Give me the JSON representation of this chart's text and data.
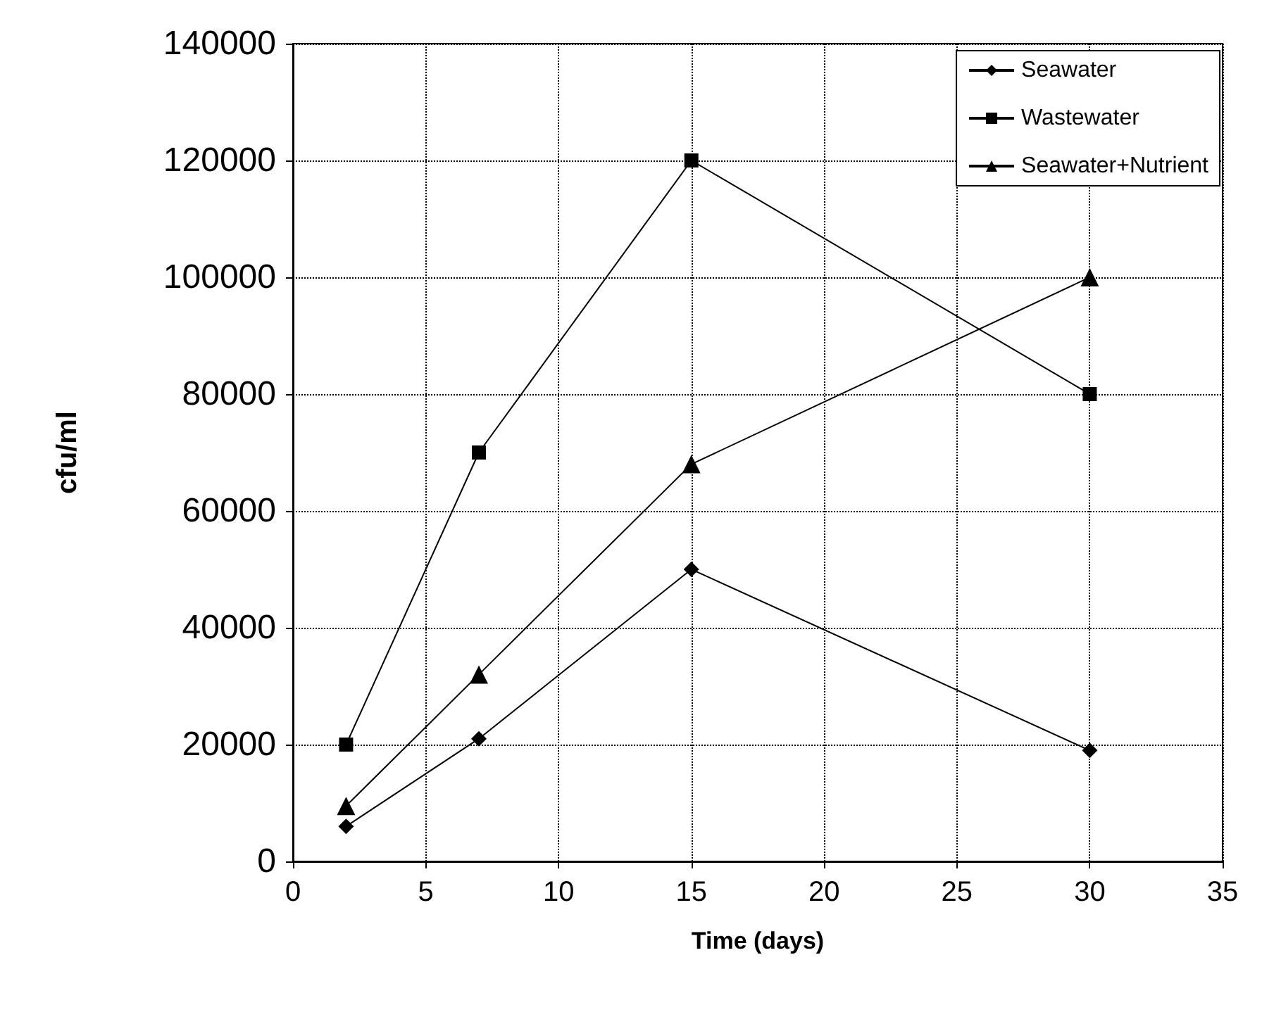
{
  "chart_data": {
    "type": "line",
    "xlabel": "Time (days)",
    "ylabel": "cfu/ml",
    "x": [
      2,
      7,
      15,
      30
    ],
    "series": [
      {
        "name": "Seawater",
        "color": "#000000",
        "marker": "diamond",
        "values": [
          6000,
          21000,
          50000,
          19000
        ]
      },
      {
        "name": "Wastewater",
        "color": "#000000",
        "marker": "square",
        "values": [
          20000,
          70000,
          120000,
          80000
        ]
      },
      {
        "name": "Seawater+Nutrient",
        "color": "#000000",
        "marker": "triangle",
        "values": [
          9500,
          32000,
          68000,
          100000
        ]
      }
    ],
    "xlim": [
      0,
      35
    ],
    "xticks": [
      0,
      5,
      10,
      15,
      20,
      25,
      30,
      35
    ],
    "ylim": [
      0,
      140000
    ],
    "yticks": [
      0,
      20000,
      40000,
      60000,
      80000,
      100000,
      120000,
      140000
    ],
    "grid": true,
    "legend": "top right",
    "line_style": "solid"
  }
}
